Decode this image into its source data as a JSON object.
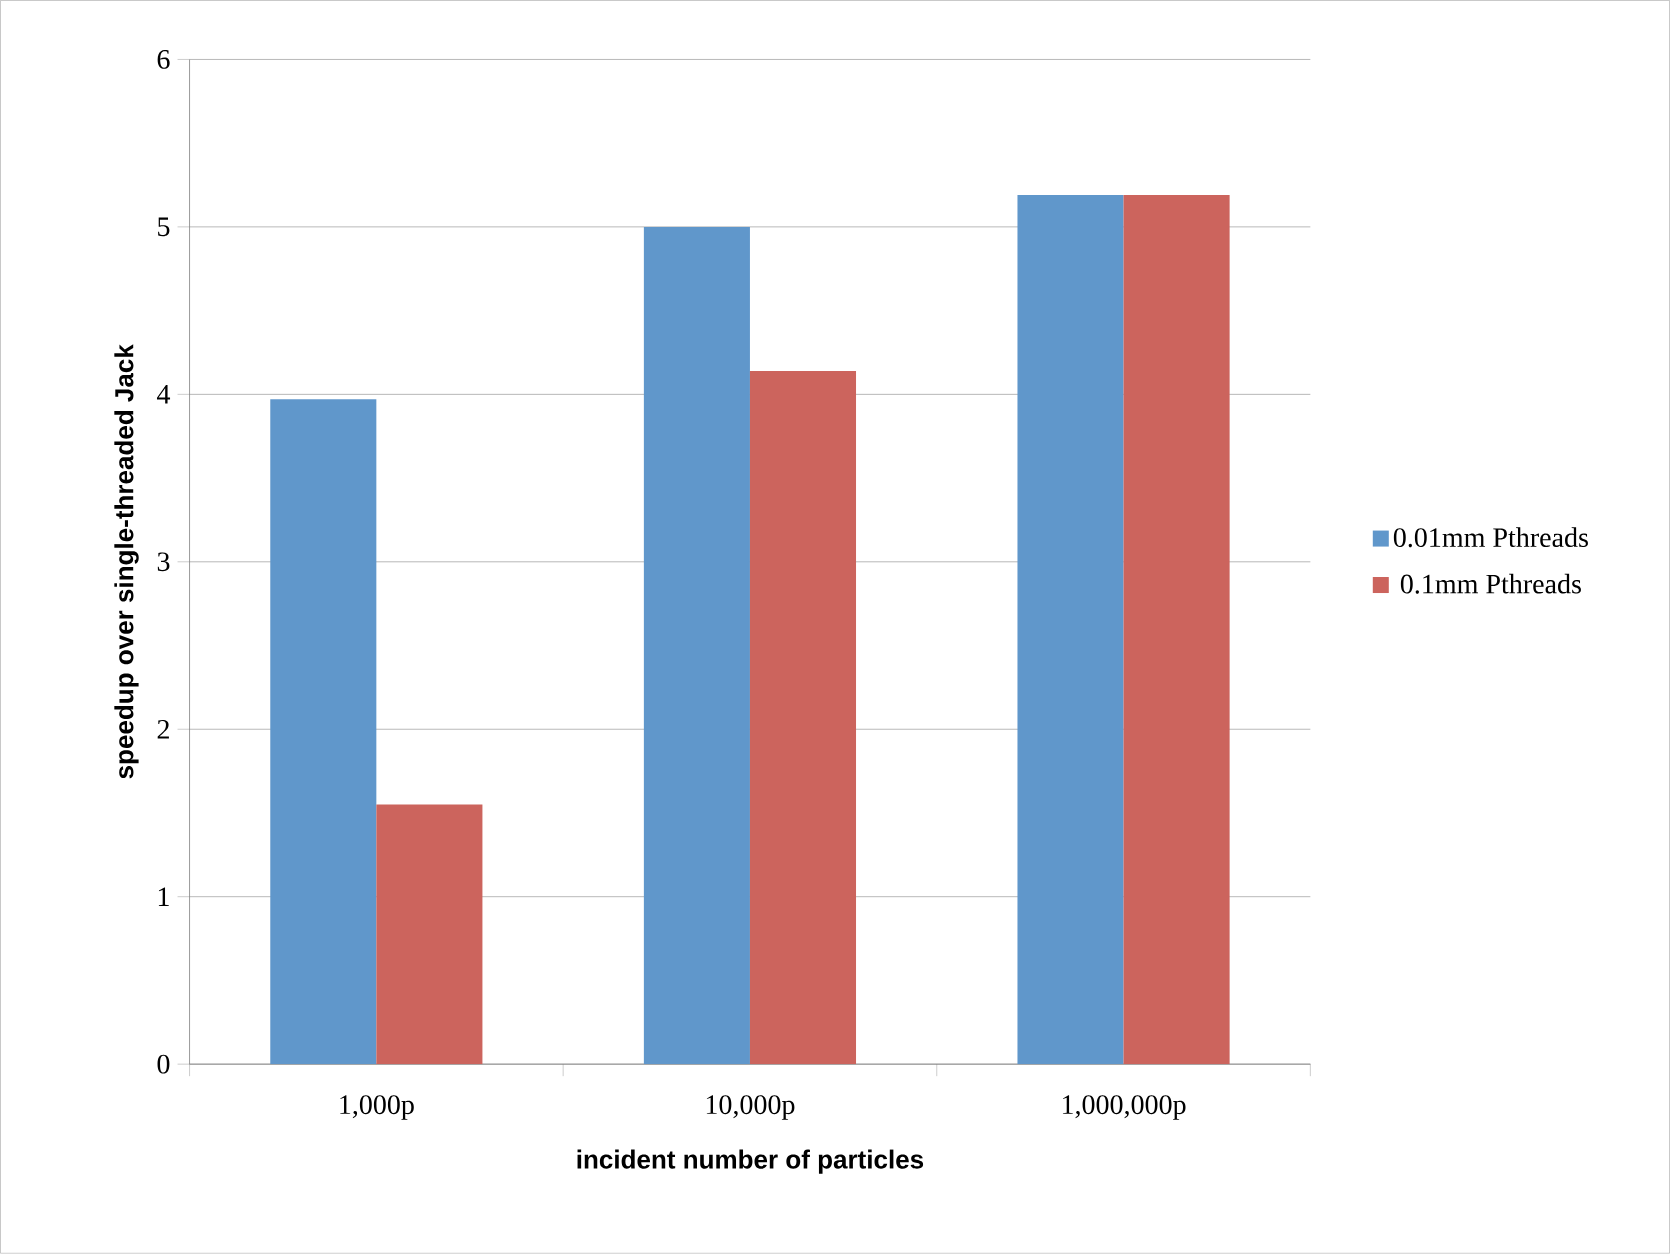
{
  "chart_data": {
    "type": "bar",
    "categories": [
      "1,000p",
      "10,000p",
      "1,000,000p"
    ],
    "series": [
      {
        "name": "0.01mm Pthreads",
        "color": "#6097cb",
        "values": [
          3.97,
          5.0,
          5.19
        ]
      },
      {
        "name": "0.1mm Pthreads",
        "color": "#cc645d",
        "values": [
          1.55,
          4.14,
          5.19
        ]
      }
    ],
    "xlabel": "incident number of particles",
    "ylabel": "speedup over single-threaded Jack",
    "ylim": [
      0,
      6
    ],
    "yticks": [
      0,
      1,
      2,
      3,
      4,
      5,
      6
    ],
    "grid": "y",
    "legend": "right"
  }
}
